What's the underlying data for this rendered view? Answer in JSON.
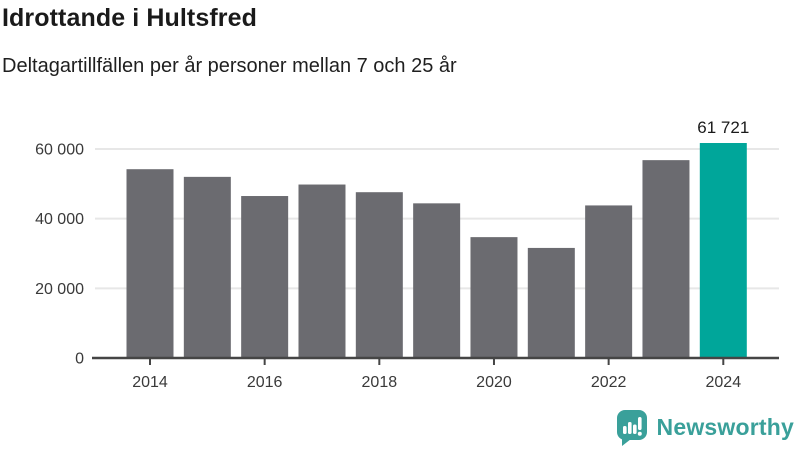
{
  "header": {
    "title": "Idrottande i Hultsfred",
    "subtitle": "Deltagartillfällen per år personer mellan 7 och 25 år"
  },
  "footer": {
    "brand": "Newsworthy"
  },
  "colors": {
    "bar": "#6b6b70",
    "highlight": "#00a69a",
    "gridline": "#e7e7e7",
    "axis": "#454545",
    "axis_text": "#3a3a3a",
    "annotation_text": "#1a1a1a",
    "brand": "#3aa09a"
  },
  "chart_data": {
    "type": "bar",
    "title": "Idrottande i Hultsfred",
    "subtitle": "Deltagartillfällen per år personer mellan 7 och 25 år",
    "categories": [
      2014,
      2015,
      2016,
      2017,
      2018,
      2019,
      2020,
      2021,
      2022,
      2023,
      2024
    ],
    "values": [
      54200,
      52000,
      46500,
      49800,
      47600,
      44400,
      34700,
      31600,
      43800,
      56800,
      61721
    ],
    "highlight_category": 2024,
    "value_label": {
      "category": 2024,
      "text": "61 721"
    },
    "xlabel": "",
    "ylabel": "",
    "ylim": [
      0,
      63000
    ],
    "yticks": [
      0,
      20000,
      40000,
      60000
    ],
    "ytick_labels": [
      "0",
      "20 000",
      "40 000",
      "60 000"
    ],
    "xticks": [
      2014,
      2016,
      2018,
      2020,
      2022,
      2024
    ],
    "xtick_labels": [
      "2014",
      "2016",
      "2018",
      "2020",
      "2022",
      "2024"
    ],
    "grid": "horizontal",
    "legend": "none"
  }
}
